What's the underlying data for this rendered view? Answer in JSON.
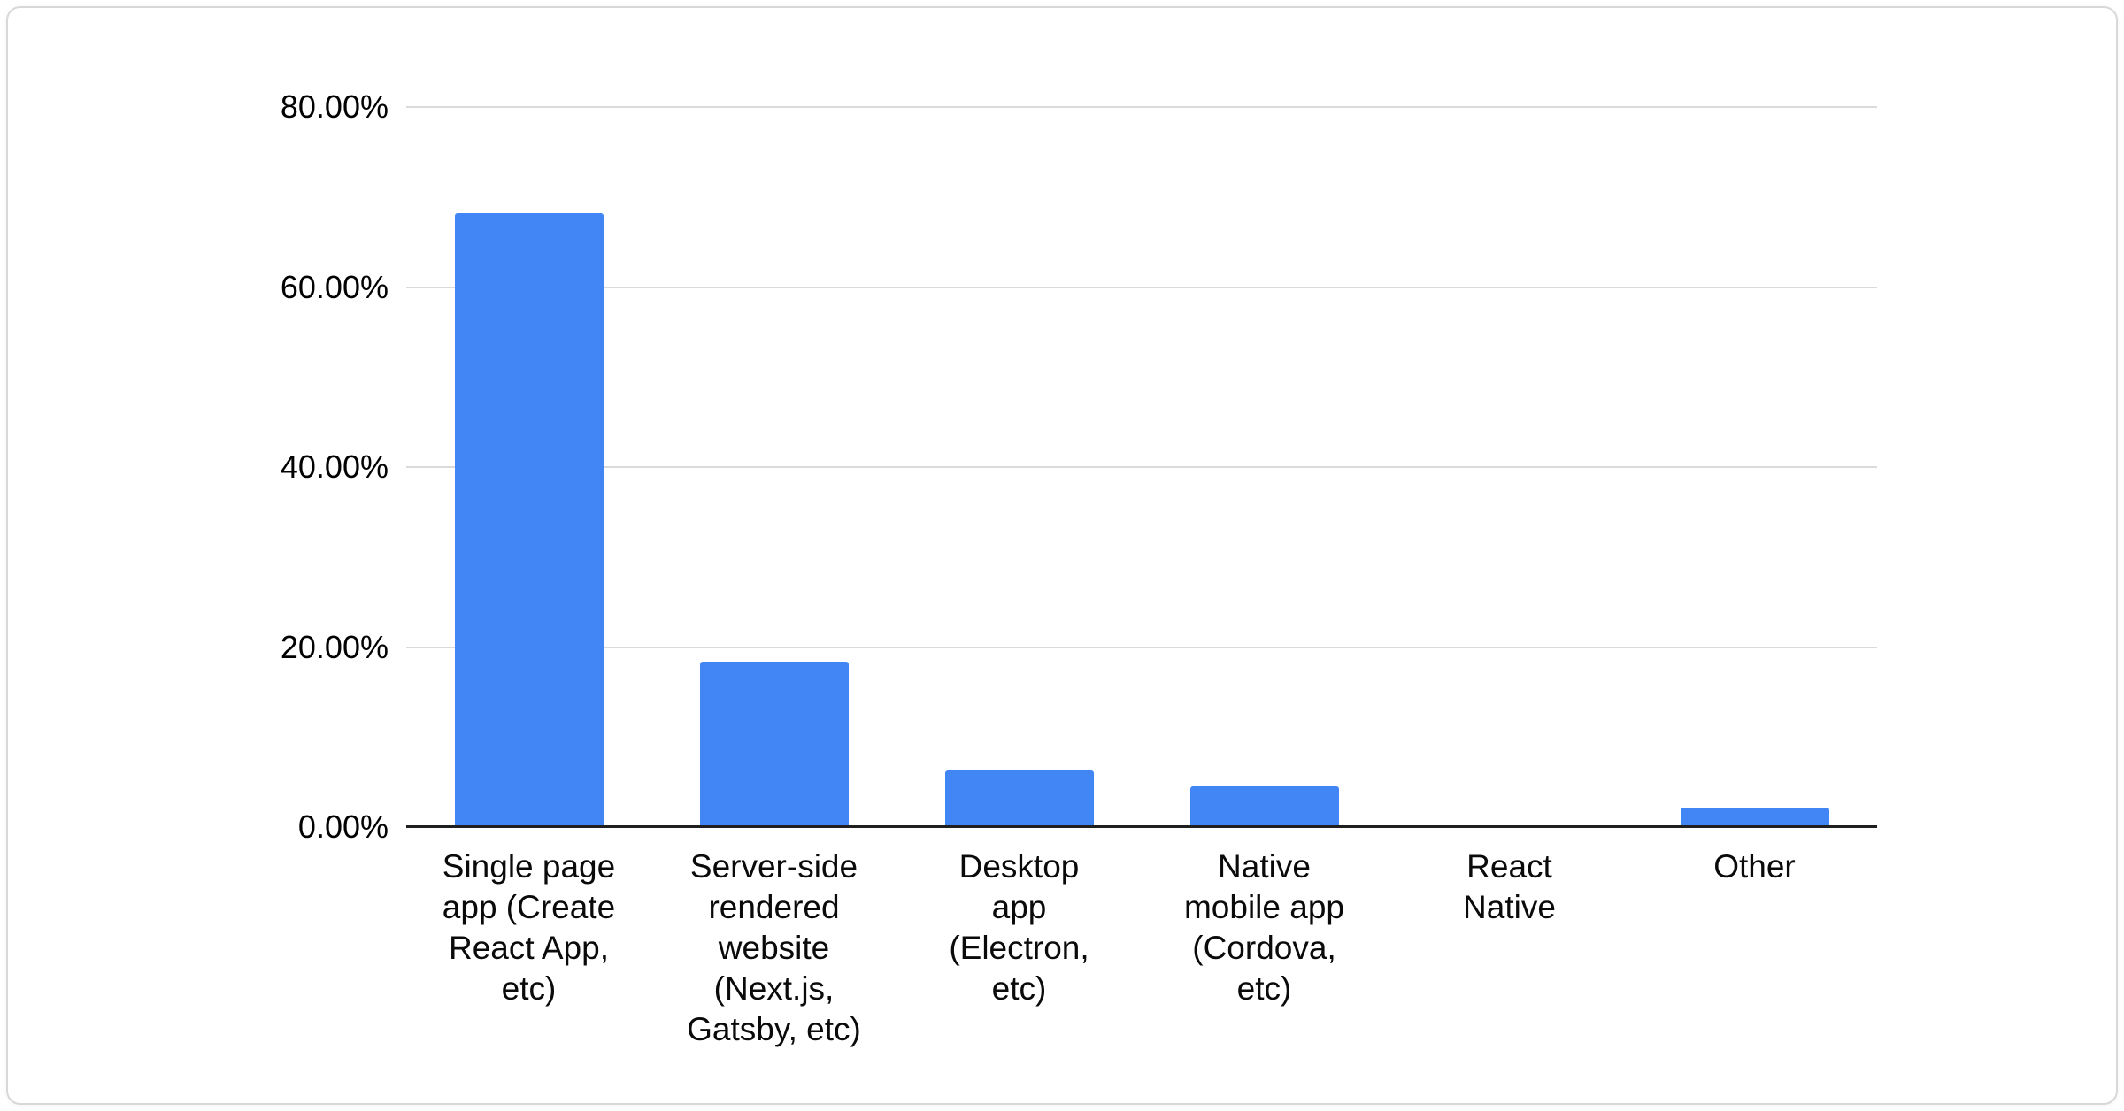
{
  "chart_data": {
    "type": "bar",
    "title": "",
    "xlabel": "",
    "ylabel": "",
    "ylim": [
      0,
      80
    ],
    "grid": true,
    "legend": "none",
    "bar_color": "#4285f4",
    "axis_line_color": "#1f1f1f",
    "gridline_color": "#dadada",
    "categories": [
      "Single page app (Create React App, etc)",
      "Server-side rendered website (Next.js, Gatsby, etc)",
      "Desktop app (Electron, etc)",
      "Native mobile app (Cordova, etc)",
      "React Native",
      "Other"
    ],
    "category_lines": [
      [
        "Single page",
        "app (Create",
        "React App,",
        "etc)"
      ],
      [
        "Server-side",
        "rendered",
        "website",
        "(Next.js,",
        "Gatsby, etc)"
      ],
      [
        "Desktop",
        "app",
        "(Electron,",
        "etc)"
      ],
      [
        "Native",
        "mobile app",
        "(Cordova,",
        "etc)"
      ],
      [
        "React",
        "Native"
      ],
      [
        "Other"
      ]
    ],
    "values": [
      68.2,
      18.4,
      6.3,
      4.5,
      0,
      2.2
    ],
    "y_ticks": [
      {
        "value": 0,
        "label": "0.00%"
      },
      {
        "value": 20,
        "label": "20.00%"
      },
      {
        "value": 40,
        "label": "40.00%"
      },
      {
        "value": 60,
        "label": "60.00%"
      },
      {
        "value": 80,
        "label": "80.00%"
      }
    ]
  }
}
